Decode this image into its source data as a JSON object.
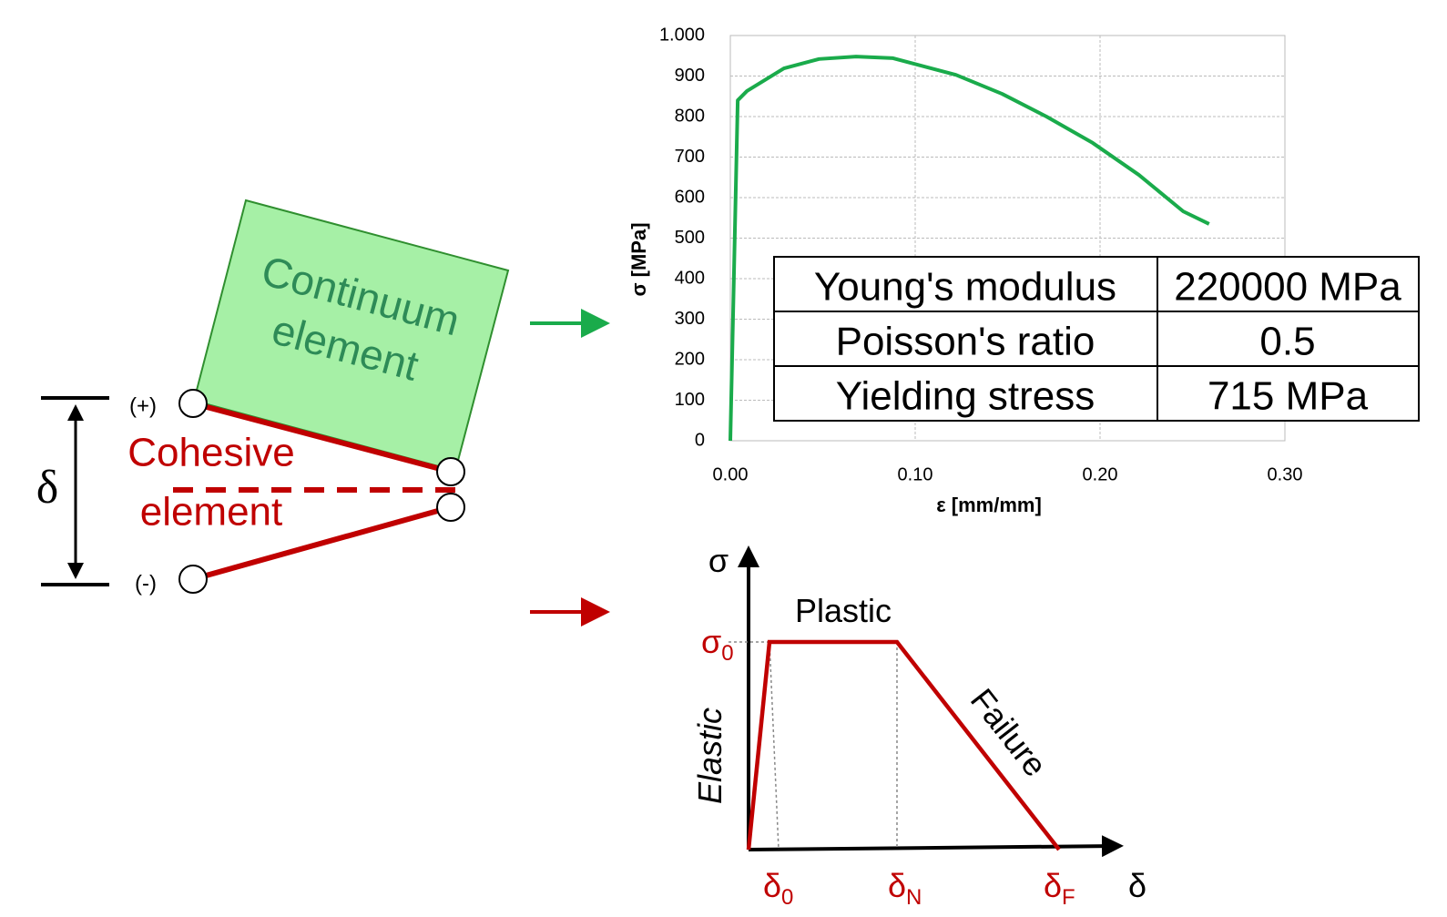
{
  "chart_data": {
    "type": "line",
    "x_label": "ε [mm/mm]",
    "y_label": "σ [MPa]",
    "xlim": [
      0,
      0.3
    ],
    "ylim": [
      0,
      1000
    ],
    "xticks": [
      {
        "value": 0,
        "label": "0.00"
      },
      {
        "value": 0.1,
        "label": "0.10"
      },
      {
        "value": 0.2,
        "label": "0.20"
      },
      {
        "value": 0.3,
        "label": "0.30"
      }
    ],
    "yticks": [
      0,
      100,
      200,
      300,
      400,
      500,
      600,
      700,
      800,
      900,
      {
        "value": 1000,
        "label": "1.000"
      }
    ],
    "grid": true,
    "series": [
      {
        "color": "#1aab4b",
        "x": [
          0,
          0.004,
          0.009,
          0.029,
          0.048,
          0.068,
          0.088,
          0.122,
          0.147,
          0.171,
          0.196,
          0.221,
          0.245,
          0.259
        ],
        "values": [
          0,
          840,
          863,
          919,
          942,
          948,
          944,
          903,
          856,
          800,
          735,
          656,
          566,
          535
        ]
      }
    ]
  },
  "table": {
    "rows": [
      [
        "Young's modulus",
        "220000 MPa"
      ],
      [
        "Poisson's ratio",
        "0.5"
      ],
      [
        "Yielding stress",
        "715 MPa"
      ]
    ]
  },
  "element_diagram": {
    "continuum_label": [
      "Continuum",
      "element"
    ],
    "cohesive_label": [
      "Cohesive",
      "element"
    ],
    "plus_node": "(+)",
    "minus_node": "(-)",
    "separation": "δ"
  },
  "traction_law": {
    "y_axis": "σ",
    "x_axis": "δ",
    "plastic": "Plastic",
    "elastic": "Elastic",
    "failure": "Failure",
    "sigma0": {
      "base": "σ",
      "sub": "0"
    },
    "delta0": {
      "base": "δ",
      "sub": "0"
    },
    "deltaN": {
      "base": "δ",
      "sub": "N"
    },
    "deltaF": {
      "base": "δ",
      "sub": "F"
    }
  }
}
